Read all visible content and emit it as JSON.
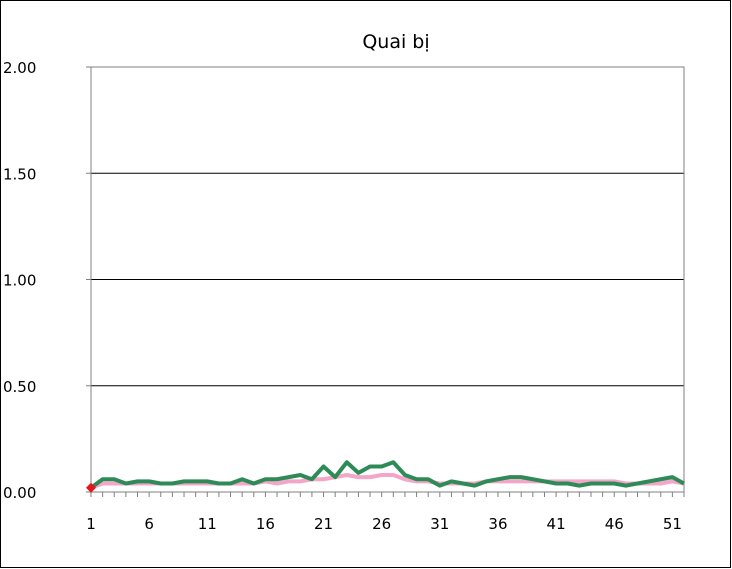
{
  "chart_data": {
    "type": "line",
    "title": "Quai bị",
    "xlabel": "",
    "ylabel": "",
    "ylim": [
      0,
      2.0
    ],
    "y_ticks": [
      "0.00",
      "0.50",
      "1.00",
      "1.50",
      "2.00"
    ],
    "y_tick_values": [
      0,
      0.5,
      1.0,
      1.5,
      2.0
    ],
    "x_range": [
      1,
      52
    ],
    "x_ticks": [
      1,
      6,
      11,
      16,
      21,
      26,
      31,
      36,
      41,
      46,
      51
    ],
    "grid": "horizontal",
    "legend": "none",
    "series": [
      {
        "color": "#f4a6c8",
        "values": [
          0.02,
          0.04,
          0.04,
          0.04,
          0.04,
          0.04,
          0.04,
          0.04,
          0.04,
          0.04,
          0.04,
          0.04,
          0.04,
          0.04,
          0.04,
          0.05,
          0.04,
          0.05,
          0.05,
          0.06,
          0.06,
          0.07,
          0.08,
          0.07,
          0.07,
          0.08,
          0.08,
          0.06,
          0.05,
          0.05,
          0.04,
          0.04,
          0.04,
          0.04,
          0.05,
          0.05,
          0.05,
          0.05,
          0.05,
          0.05,
          0.05,
          0.05,
          0.05,
          0.05,
          0.05,
          0.05,
          0.04,
          0.04,
          0.04,
          0.04,
          0.05,
          0.04
        ]
      },
      {
        "color": "#2e8b57",
        "values": [
          0.02,
          0.06,
          0.06,
          0.04,
          0.05,
          0.05,
          0.04,
          0.04,
          0.05,
          0.05,
          0.05,
          0.04,
          0.04,
          0.06,
          0.04,
          0.06,
          0.06,
          0.07,
          0.08,
          0.06,
          0.12,
          0.07,
          0.14,
          0.09,
          0.12,
          0.12,
          0.14,
          0.08,
          0.06,
          0.06,
          0.03,
          0.05,
          0.04,
          0.03,
          0.05,
          0.06,
          0.07,
          0.07,
          0.06,
          0.05,
          0.04,
          0.04,
          0.03,
          0.04,
          0.04,
          0.04,
          0.03,
          0.04,
          0.05,
          0.06,
          0.07,
          0.04
        ]
      }
    ],
    "marker": {
      "x": 1,
      "y": 0.02,
      "color": "#e8141e",
      "shape": "diamond"
    }
  }
}
